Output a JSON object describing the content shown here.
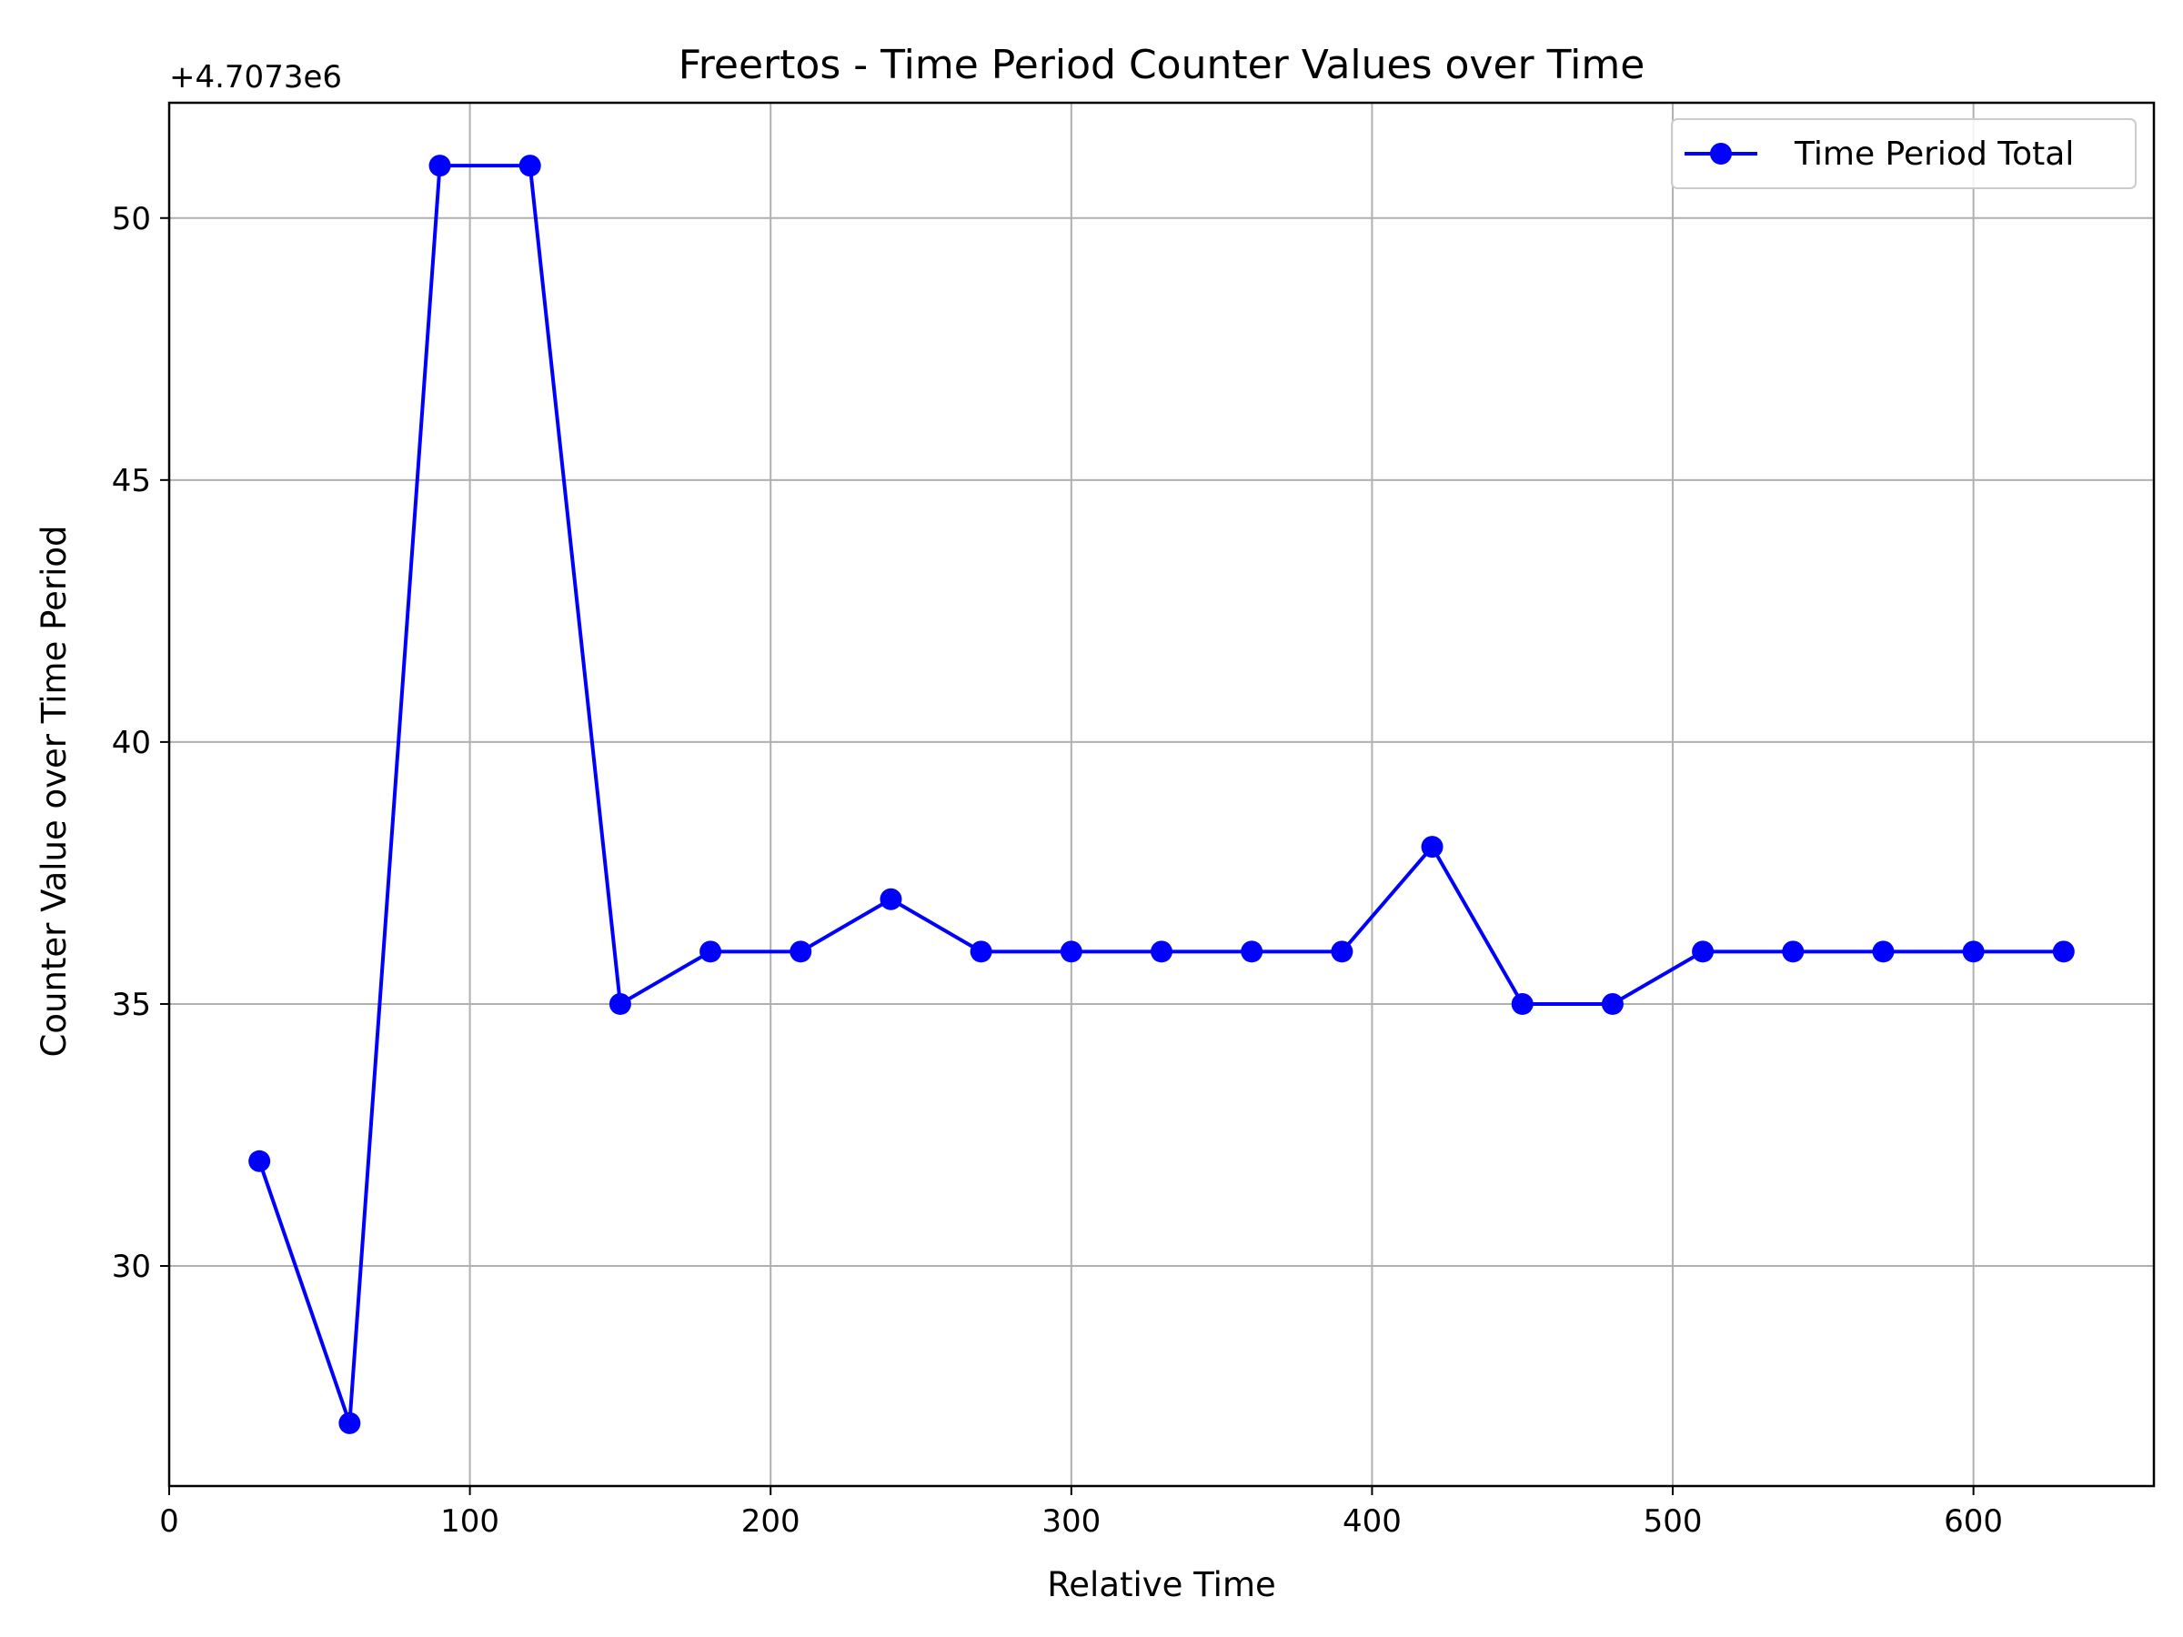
{
  "chart_data": {
    "type": "line",
    "title": "Freertos - Time Period Counter Values over Time",
    "xlabel": "Relative Time",
    "ylabel": "Counter Value over Time Period",
    "y_offset_label": "+4.7073e6",
    "y_offset": 4707300,
    "xlim": [
      0,
      660
    ],
    "ylim": [
      25.8,
      52.2
    ],
    "xticks": [
      0,
      100,
      200,
      300,
      400,
      500,
      600
    ],
    "yticks": [
      30,
      35,
      40,
      45,
      50
    ],
    "grid": true,
    "legend_position": "top-right",
    "series": [
      {
        "name": "Time Period Total",
        "color": "#0000ff",
        "marker": "circle",
        "x": [
          30,
          60,
          90,
          120,
          150,
          180,
          210,
          240,
          270,
          300,
          330,
          360,
          390,
          420,
          450,
          480,
          510,
          540,
          570,
          600,
          630
        ],
        "y": [
          32,
          27,
          51,
          51,
          35,
          36,
          36,
          37,
          36,
          36,
          36,
          36,
          36,
          38,
          35,
          35,
          36,
          36,
          36,
          36,
          36
        ]
      }
    ]
  }
}
